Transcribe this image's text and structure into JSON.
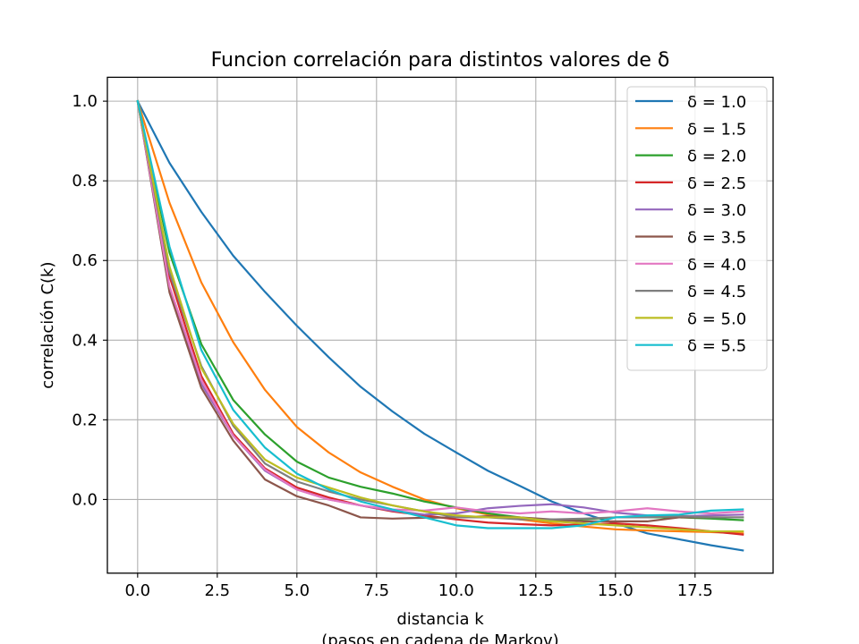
{
  "chart_data": {
    "type": "line",
    "title": "Funcion correlación para distintos valores de δ",
    "xlabel": "distancia k",
    "xlabel2": "(pasos en cadena de Markov)",
    "ylabel": "correlación C(k)",
    "xlim": [
      -0.95,
      19.95
    ],
    "ylim": [
      -0.185,
      1.06
    ],
    "xticks": [
      0,
      2.5,
      5,
      7.5,
      10,
      12.5,
      15,
      17.5
    ],
    "xtick_labels": [
      "0.0",
      "2.5",
      "5.0",
      "7.5",
      "10.0",
      "12.5",
      "15.0",
      "17.5"
    ],
    "yticks": [
      0,
      0.2,
      0.4,
      0.6,
      0.8,
      1.0
    ],
    "ytick_labels": [
      "0.0",
      "0.2",
      "0.4",
      "0.6",
      "0.8",
      "1.0"
    ],
    "grid": true,
    "legend_position": "top-right",
    "x": [
      0,
      1,
      2,
      3,
      4,
      5,
      6,
      7,
      8,
      9,
      10,
      11,
      12,
      13,
      14,
      15,
      16,
      17,
      18,
      19
    ],
    "series": [
      {
        "name": "δ = 1.0",
        "color": "#1f77b4",
        "values": [
          1.0,
          0.845,
          0.722,
          0.612,
          0.521,
          0.436,
          0.357,
          0.283,
          0.221,
          0.165,
          0.118,
          0.072,
          0.034,
          -0.005,
          -0.035,
          -0.06,
          -0.085,
          -0.1,
          -0.115,
          -0.128
        ]
      },
      {
        "name": "δ = 1.5",
        "color": "#ff7f0e",
        "values": [
          1.0,
          0.745,
          0.545,
          0.395,
          0.275,
          0.182,
          0.118,
          0.068,
          0.032,
          0.0,
          -0.022,
          -0.038,
          -0.05,
          -0.06,
          -0.068,
          -0.075,
          -0.078,
          -0.08,
          -0.082,
          -0.085
        ]
      },
      {
        "name": "δ = 2.0",
        "color": "#2ca02c",
        "values": [
          1.0,
          0.62,
          0.39,
          0.25,
          0.163,
          0.095,
          0.055,
          0.032,
          0.015,
          -0.005,
          -0.02,
          -0.035,
          -0.045,
          -0.055,
          -0.05,
          -0.045,
          -0.045,
          -0.045,
          -0.048,
          -0.052
        ]
      },
      {
        "name": "δ = 2.5",
        "color": "#d62728",
        "values": [
          1.0,
          0.56,
          0.31,
          0.165,
          0.078,
          0.03,
          0.005,
          -0.015,
          -0.03,
          -0.04,
          -0.05,
          -0.058,
          -0.062,
          -0.065,
          -0.063,
          -0.06,
          -0.065,
          -0.072,
          -0.08,
          -0.088
        ]
      },
      {
        "name": "δ = 3.0",
        "color": "#9467bd",
        "values": [
          1.0,
          0.525,
          0.29,
          0.16,
          0.072,
          0.025,
          0.0,
          -0.015,
          -0.028,
          -0.038,
          -0.035,
          -0.022,
          -0.016,
          -0.012,
          -0.02,
          -0.033,
          -0.04,
          -0.042,
          -0.04,
          -0.038
        ]
      },
      {
        "name": "δ = 3.5",
        "color": "#8c564b",
        "values": [
          1.0,
          0.52,
          0.28,
          0.148,
          0.05,
          0.008,
          -0.015,
          -0.045,
          -0.048,
          -0.046,
          -0.045,
          -0.042,
          -0.045,
          -0.05,
          -0.055,
          -0.055,
          -0.055,
          -0.045,
          -0.045,
          -0.045
        ]
      },
      {
        "name": "δ = 4.0",
        "color": "#e377c2",
        "values": [
          1.0,
          0.535,
          0.3,
          0.16,
          0.075,
          0.025,
          0.0,
          -0.015,
          -0.025,
          -0.028,
          -0.02,
          -0.03,
          -0.035,
          -0.03,
          -0.035,
          -0.03,
          -0.022,
          -0.03,
          -0.035,
          -0.03
        ]
      },
      {
        "name": "δ = 4.5",
        "color": "#7f7f7f",
        "values": [
          1.0,
          0.57,
          0.335,
          0.185,
          0.09,
          0.045,
          0.02,
          0.0,
          -0.015,
          -0.03,
          -0.045,
          -0.045,
          -0.05,
          -0.05,
          -0.048,
          -0.045,
          -0.045,
          -0.042,
          -0.045,
          -0.045
        ]
      },
      {
        "name": "δ = 5.0",
        "color": "#bcbd22",
        "values": [
          1.0,
          0.585,
          0.33,
          0.19,
          0.1,
          0.055,
          0.03,
          0.005,
          -0.015,
          -0.03,
          -0.04,
          -0.045,
          -0.045,
          -0.055,
          -0.06,
          -0.065,
          -0.07,
          -0.075,
          -0.08,
          -0.08
        ]
      },
      {
        "name": "δ = 5.5",
        "color": "#17becf",
        "values": [
          1.0,
          0.635,
          0.375,
          0.225,
          0.13,
          0.065,
          0.025,
          -0.005,
          -0.025,
          -0.045,
          -0.065,
          -0.072,
          -0.072,
          -0.072,
          -0.065,
          -0.045,
          -0.04,
          -0.038,
          -0.028,
          -0.025
        ]
      }
    ]
  }
}
